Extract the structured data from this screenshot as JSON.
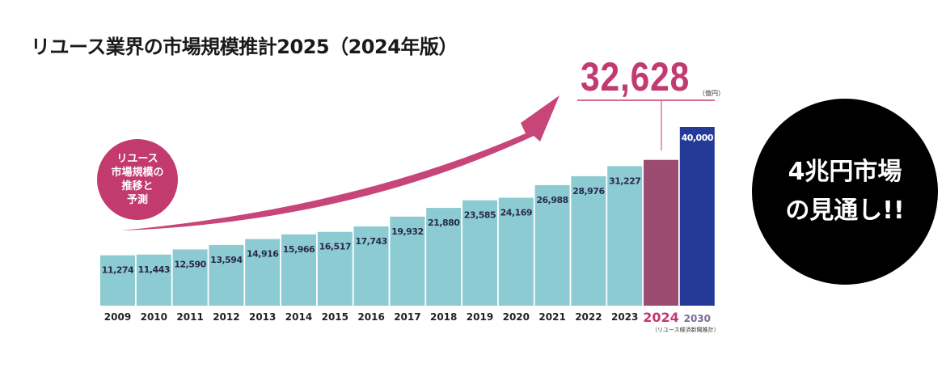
{
  "title": "リユース業界の市場規模推計2025（2024年版）",
  "highlight": {
    "value": "32,628",
    "unit": "（億円）"
  },
  "footnote": "（リユース経済新聞推計）",
  "badge_left": {
    "lines": [
      "リユース",
      "市場規模の",
      "推移と",
      "予測"
    ]
  },
  "badge_right": {
    "lines": [
      "4兆円市場",
      "の見通し!!"
    ]
  },
  "colors": {
    "bar": "#8ccbd2",
    "bar_2024": "#9b4a70",
    "bar_2030": "#243a96",
    "accent": "#c23a72",
    "arrow": "#c8457a"
  },
  "chart_data": {
    "type": "bar",
    "categories": [
      "2009",
      "2010",
      "2011",
      "2012",
      "2013",
      "2014",
      "2015",
      "2016",
      "2017",
      "2018",
      "2019",
      "2020",
      "2021",
      "2022",
      "2023",
      "2024",
      "2030"
    ],
    "values": [
      11274,
      11443,
      12590,
      13594,
      14916,
      15966,
      16517,
      17743,
      19932,
      21880,
      23585,
      24169,
      26988,
      28976,
      31227,
      32628,
      40000
    ],
    "labels": [
      "11,274",
      "11,443",
      "12,590",
      "13,594",
      "14,916",
      "15,966",
      "16,517",
      "17,743",
      "19,932",
      "21,880",
      "23,585",
      "24,169",
      "26,988",
      "28,976",
      "31,227",
      "",
      "40,000"
    ],
    "ylim": [
      0,
      40000
    ],
    "unit": "億円",
    "grid": false
  }
}
